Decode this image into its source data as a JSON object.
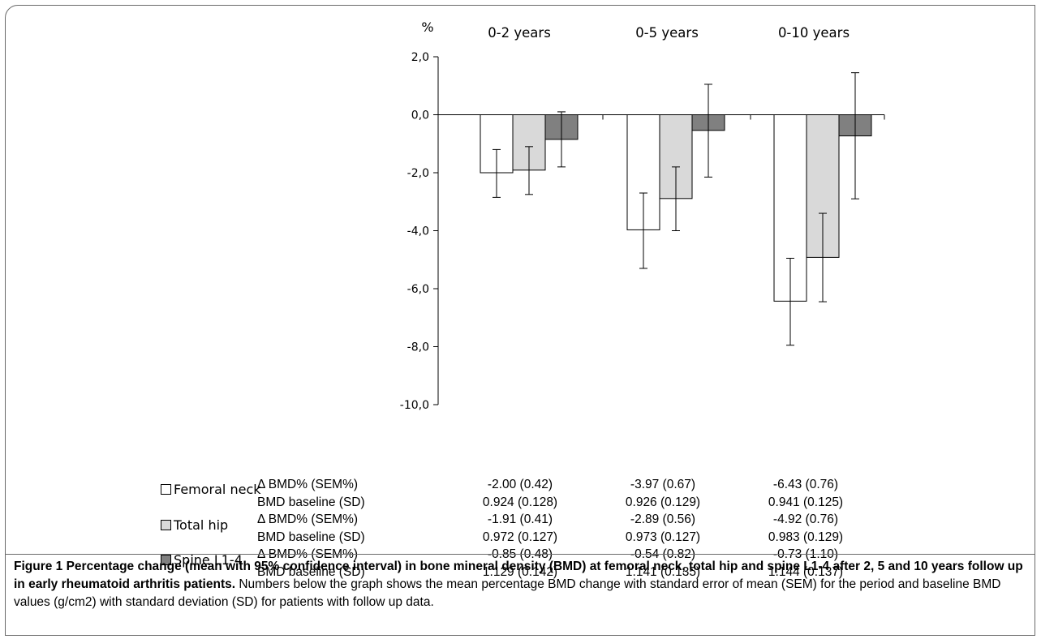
{
  "chart_data": {
    "type": "bar",
    "ylabel": "%",
    "ylim": [
      -10,
      2
    ],
    "yticks": [
      "2,0",
      "0,0",
      "-2,0",
      "-4,0",
      "-6,0",
      "-8,0",
      "-10,0"
    ],
    "ytick_values": [
      2,
      0,
      -2,
      -4,
      -6,
      -8,
      -10
    ],
    "categories": [
      "0-2 years",
      "0-5 years",
      "0-10 years"
    ],
    "series": [
      {
        "name": "Femoral neck",
        "color": "#ffffff",
        "values": [
          -2.0,
          -3.97,
          -6.43
        ],
        "ci_low": [
          -2.85,
          -5.3,
          -7.95
        ],
        "ci_high": [
          -1.2,
          -2.7,
          -4.95
        ]
      },
      {
        "name": "Total hip",
        "color": "#d9d9d9",
        "values": [
          -1.91,
          -2.89,
          -4.92
        ],
        "ci_low": [
          -2.75,
          -4.0,
          -6.45
        ],
        "ci_high": [
          -1.1,
          -1.8,
          -3.4
        ]
      },
      {
        "name": "Spine L1-4",
        "color": "#808080",
        "values": [
          -0.85,
          -0.54,
          -0.73
        ],
        "ci_low": [
          -1.8,
          -2.15,
          -2.9
        ],
        "ci_high": [
          0.1,
          1.05,
          1.45
        ]
      }
    ],
    "grid": false
  },
  "table": {
    "rows": [
      {
        "legend": "Femoral neck",
        "color": "#ffffff",
        "metric": "Δ BMD% (SEM%)",
        "values": [
          "-2.00 (0.42)",
          "-3.97 (0.67)",
          "-6.43 (0.76)"
        ]
      },
      {
        "legend": "",
        "metric": "BMD baseline (SD)",
        "values": [
          "0.924 (0.128)",
          "0.926 (0.129)",
          "0.941 (0.125)"
        ]
      },
      {
        "legend": "Total hip",
        "color": "#d9d9d9",
        "metric": "Δ BMD% (SEM%)",
        "values": [
          "-1.91 (0.41)",
          "-2.89 (0.56)",
          "-4.92 (0.76)"
        ]
      },
      {
        "legend": "",
        "metric": "BMD baseline (SD)",
        "values": [
          "0.972 (0.127)",
          "0.973 (0.127)",
          "0.983 (0.129)"
        ]
      },
      {
        "legend": "Spine L1-4",
        "color": "#808080",
        "metric": "Δ BMD% (SEM%)",
        "values": [
          "-0.85 (0.48)",
          "-0.54 (0.82)",
          "-0.73 (1.10)"
        ]
      },
      {
        "legend": "",
        "metric": "BMD baseline (SD)",
        "values": [
          "1.129 (0.142)",
          "1.141 (0.135)",
          "1.144 (0.137)"
        ]
      }
    ]
  },
  "caption": {
    "bold": "Figure 1 Percentage change (mean with 95% confidence interval) in bone mineral density (BMD) at femoral neck, total hip and spine L1-4 after 2, 5 and 10 years follow up in early rheumatoid arthritis patients.",
    "text": " Numbers below the graph shows the mean percentage BMD change with standard error of mean (SEM) for the period and baseline BMD values (g/cm2) with standard deviation (SD) for patients with follow up data."
  }
}
